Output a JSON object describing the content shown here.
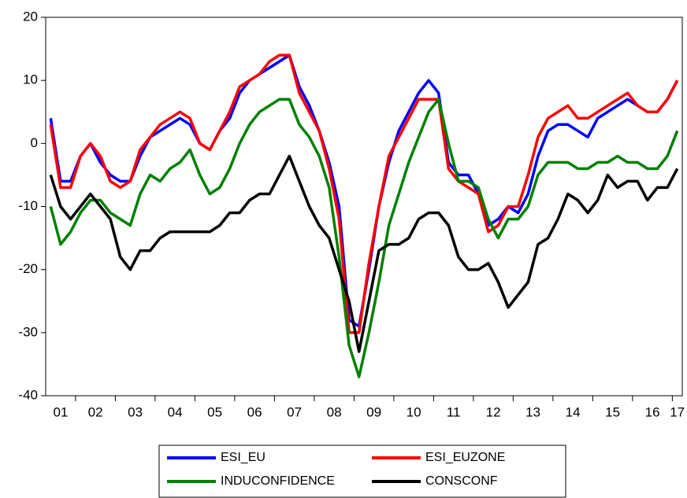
{
  "chart_data": {
    "type": "line",
    "categories": [
      "01",
      null,
      null,
      "02",
      null,
      null,
      null,
      "03",
      null,
      null,
      null,
      "04",
      null,
      null,
      null,
      "05",
      null,
      null,
      null,
      "06",
      null,
      null,
      null,
      "07",
      null,
      null,
      null,
      "08",
      null,
      null,
      null,
      "09",
      null,
      null,
      null,
      "10",
      null,
      null,
      null,
      "11",
      null,
      null,
      null,
      "12",
      null,
      null,
      null,
      "13",
      null,
      null,
      null,
      "14",
      null,
      null,
      null,
      "15",
      null,
      null,
      null,
      "16",
      null,
      null,
      null,
      "17"
    ],
    "series": [
      {
        "name": "ESI_EU",
        "color": "#0000ff",
        "values": [
          4,
          -6,
          -6,
          -2,
          0,
          -3,
          -5,
          -6,
          -6,
          -2,
          1,
          2,
          3,
          4,
          3,
          0,
          -1,
          2,
          4,
          8,
          10,
          11,
          12,
          13,
          14,
          9,
          6,
          2,
          -3,
          -10,
          -28,
          -29,
          -20,
          -10,
          -3,
          2,
          5,
          8,
          10,
          8,
          -3,
          -5,
          -5,
          -8,
          -13,
          -12,
          -10,
          -11,
          -8,
          -2,
          2,
          3,
          3,
          2,
          1,
          4,
          5,
          6,
          7,
          6,
          5,
          5,
          7,
          10
        ]
      },
      {
        "name": "ESI_EUZONE",
        "color": "#ff0000",
        "values": [
          3,
          -7,
          -7,
          -2,
          0,
          -2,
          -6,
          -7,
          -6,
          -1,
          1,
          3,
          4,
          5,
          4,
          0,
          -1,
          2,
          5,
          9,
          10,
          11,
          13,
          14,
          14,
          8,
          5,
          2,
          -4,
          -12,
          -30,
          -30,
          -19,
          -10,
          -2,
          1,
          4,
          7,
          7,
          7,
          -4,
          -6,
          -7,
          -8,
          -14,
          -13,
          -10,
          -10,
          -5,
          1,
          4,
          5,
          6,
          4,
          4,
          5,
          6,
          7,
          8,
          6,
          5,
          5,
          7,
          10
        ]
      },
      {
        "name": "INDUCONFIDENCE",
        "color": "#008000",
        "values": [
          -10,
          -16,
          -14,
          -11,
          -9,
          -9,
          -11,
          -12,
          -13,
          -8,
          -5,
          -6,
          -4,
          -3,
          -1,
          -5,
          -8,
          -7,
          -4,
          0,
          3,
          5,
          6,
          7,
          7,
          3,
          1,
          -2,
          -7,
          -18,
          -32,
          -37,
          -30,
          -22,
          -13,
          -8,
          -3,
          1,
          5,
          7,
          0,
          -6,
          -6,
          -7,
          -12,
          -15,
          -12,
          -12,
          -10,
          -5,
          -3,
          -3,
          -3,
          -4,
          -4,
          -3,
          -3,
          -2,
          -3,
          -3,
          -4,
          -4,
          -2,
          2
        ]
      },
      {
        "name": "CONSCONF",
        "color": "#000000",
        "values": [
          -5,
          -10,
          -12,
          -10,
          -8,
          -10,
          -12,
          -18,
          -20,
          -17,
          -17,
          -15,
          -14,
          -14,
          -14,
          -14,
          -14,
          -13,
          -11,
          -11,
          -9,
          -8,
          -8,
          -5,
          -2,
          -6,
          -10,
          -13,
          -15,
          -20,
          -25,
          -33,
          -25,
          -17,
          -16,
          -16,
          -15,
          -12,
          -11,
          -11,
          -13,
          -18,
          -20,
          -20,
          -19,
          -22,
          -26,
          -24,
          -22,
          -16,
          -15,
          -12,
          -8,
          -9,
          -11,
          -9,
          -5,
          -7,
          -6,
          -6,
          -9,
          -7,
          -7,
          -4
        ]
      }
    ],
    "ylim": [
      -40,
      20
    ],
    "yticks": [
      -40,
      -30,
      -20,
      -10,
      0,
      10,
      20
    ],
    "legend": "bottom"
  }
}
